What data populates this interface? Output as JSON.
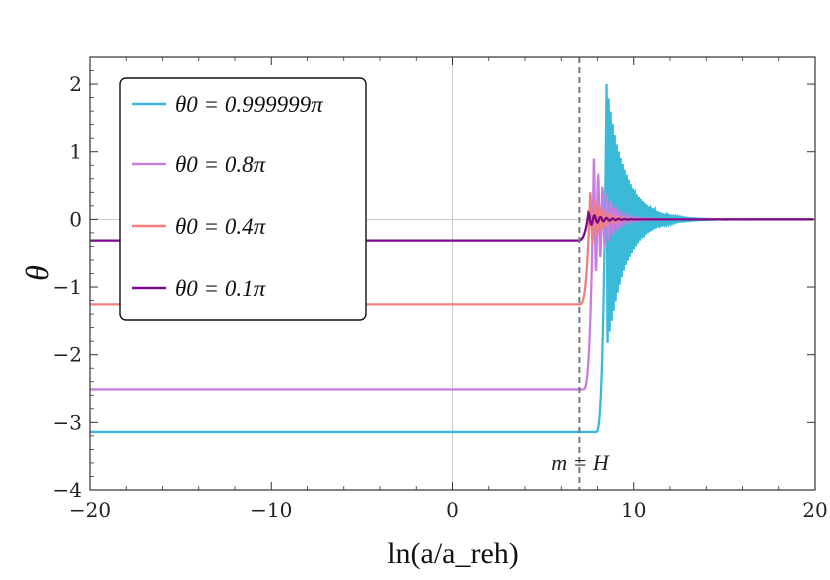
{
  "chart_data": {
    "type": "line",
    "xlabel": "ln(a/a_reh)",
    "ylabel": "θ",
    "xlim": [
      -20,
      20
    ],
    "ylim": [
      -4,
      2.4
    ],
    "x_ticks": [
      -20,
      -10,
      0,
      10,
      20
    ],
    "x_tick_labels": [
      "−20",
      "−10",
      "0",
      "10",
      "20"
    ],
    "y_ticks": [
      -4,
      -3,
      -2,
      -1,
      0,
      1,
      2
    ],
    "y_tick_labels": [
      "−4",
      "−3",
      "−2",
      "−1",
      "0",
      "1",
      "2"
    ],
    "grid": "lines at x=0 and y=0",
    "legend_position": "top-left",
    "annotation": {
      "text": "m = H",
      "x": 7
    },
    "series": [
      {
        "name": "θ0 = 0.999999π",
        "color": "#3bbad8",
        "initial": -3.1416,
        "transition_x": 8.5
      },
      {
        "name": "θ0 = 0.8π",
        "color": "#c77ee0",
        "initial": -2.5133,
        "transition_x": 7.8
      },
      {
        "name": "θ0 = 0.4π",
        "color": "#f08080",
        "initial": -1.2566,
        "transition_x": 7.6
      },
      {
        "name": "θ0 = 0.1π",
        "color": "#7a0a8a",
        "initial": -0.3142,
        "transition_x": 7.5
      }
    ]
  }
}
